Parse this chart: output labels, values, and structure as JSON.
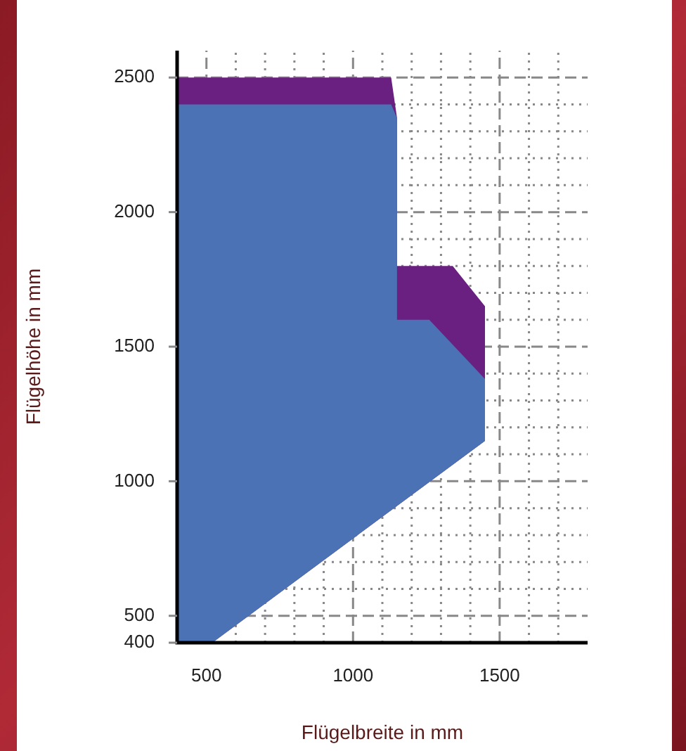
{
  "chart_data": {
    "type": "area",
    "xlabel": "Flügelbreite in mm",
    "ylabel": "Flügelhöhe in mm",
    "series": [
      {
        "color": "#6a2080",
        "x": [
          400,
          1130,
          1150,
          1150,
          1340,
          1450,
          1450,
          520,
          400
        ],
        "values": [
          2500,
          2500,
          2350,
          1800,
          1800,
          1650,
          1150,
          400,
          400
        ]
      },
      {
        "color": "#4a72b4",
        "x": [
          400,
          1130,
          1150,
          1150,
          1260,
          1450,
          1450,
          520,
          400
        ],
        "values": [
          2400,
          2400,
          2350,
          1600,
          1600,
          1380,
          1150,
          400,
          400
        ]
      }
    ],
    "xlim": [
      400,
      1800
    ],
    "xticks": [
      {
        "value": 500,
        "label": "500"
      },
      {
        "value": 600,
        "label": null
      },
      {
        "value": 700,
        "label": null
      },
      {
        "value": 800,
        "label": null
      },
      {
        "value": 900,
        "label": null
      },
      1000,
      {
        "value": 1100,
        "label": null
      },
      {
        "value": 1200,
        "label": null
      },
      {
        "value": 1300,
        "label": null
      },
      {
        "value": 1400,
        "label": null
      },
      1500,
      {
        "value": 1600,
        "label": null
      },
      {
        "value": 1700,
        "label": null
      }
    ],
    "ylim": [
      400,
      2600
    ],
    "yticks": [
      400,
      500,
      {
        "value": 600,
        "label": null
      },
      {
        "value": 700,
        "label": null
      },
      {
        "value": 800,
        "label": null
      },
      {
        "value": 900,
        "label": null
      },
      1000,
      {
        "value": 1100,
        "label": null
      },
      {
        "value": 1200,
        "label": null
      },
      {
        "value": 1300,
        "label": null
      },
      {
        "value": 1400,
        "label": null
      },
      1500,
      {
        "value": 1600,
        "label": null
      },
      {
        "value": 1700,
        "label": null
      },
      {
        "value": 1800,
        "label": null
      },
      {
        "value": 1900,
        "label": null
      },
      2000,
      {
        "value": 2100,
        "label": null
      },
      {
        "value": 2200,
        "label": null
      },
      {
        "value": 2300,
        "label": null
      },
      {
        "value": 2400,
        "label": null
      },
      2500
    ],
    "grid": true,
    "legend": false
  }
}
